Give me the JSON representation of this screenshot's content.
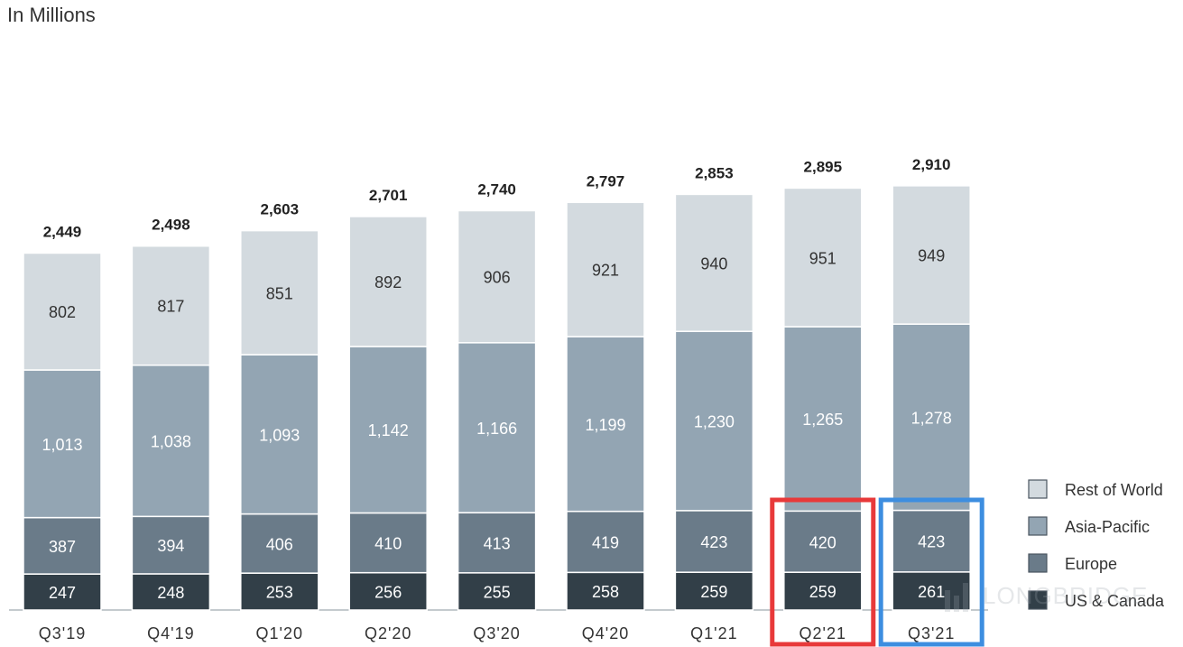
{
  "unit_label": "In Millions",
  "watermark": "LONGBRIDGE",
  "chart_data": {
    "type": "bar",
    "stacked": true,
    "categories": [
      "Q3'19",
      "Q4'19",
      "Q1'20",
      "Q2'20",
      "Q3'20",
      "Q4'20",
      "Q1'21",
      "Q2'21",
      "Q3'21"
    ],
    "totals": [
      "2,449",
      "2,498",
      "2,603",
      "2,701",
      "2,740",
      "2,797",
      "2,853",
      "2,895",
      "2,910"
    ],
    "series": [
      {
        "name": "US & Canada",
        "color": "#323f48",
        "label_color": "#ffffff",
        "values": [
          247,
          248,
          253,
          256,
          255,
          258,
          259,
          259,
          261
        ],
        "labels": [
          "247",
          "248",
          "253",
          "256",
          "255",
          "258",
          "259",
          "259",
          "261"
        ]
      },
      {
        "name": "Europe",
        "color": "#6a7b89",
        "label_color": "#ffffff",
        "values": [
          387,
          394,
          406,
          410,
          413,
          419,
          423,
          420,
          423
        ],
        "labels": [
          "387",
          "394",
          "406",
          "410",
          "413",
          "419",
          "423",
          "420",
          "423"
        ]
      },
      {
        "name": "Asia-Pacific",
        "color": "#93a5b3",
        "label_color": "#ffffff",
        "values": [
          1013,
          1038,
          1093,
          1142,
          1166,
          1199,
          1230,
          1265,
          1278
        ],
        "labels": [
          "1,013",
          "1,038",
          "1,093",
          "1,142",
          "1,166",
          "1,199",
          "1,230",
          "1,265",
          "1,278"
        ]
      },
      {
        "name": "Rest of World",
        "color": "#d3dadf",
        "label_color": "#333333",
        "values": [
          802,
          817,
          851,
          892,
          906,
          921,
          940,
          951,
          949
        ],
        "labels": [
          "802",
          "817",
          "851",
          "892",
          "906",
          "921",
          "940",
          "951",
          "949"
        ]
      }
    ],
    "legend": {
      "position": "right",
      "order": [
        "Rest of World",
        "Asia-Pacific",
        "Europe",
        "US & Canada"
      ]
    },
    "highlights": [
      {
        "category": "Q2'21",
        "color": "#e8393a"
      },
      {
        "category": "Q3'21",
        "color": "#3d8ee0"
      }
    ],
    "ylim": [
      0,
      3000
    ],
    "grid": false
  }
}
